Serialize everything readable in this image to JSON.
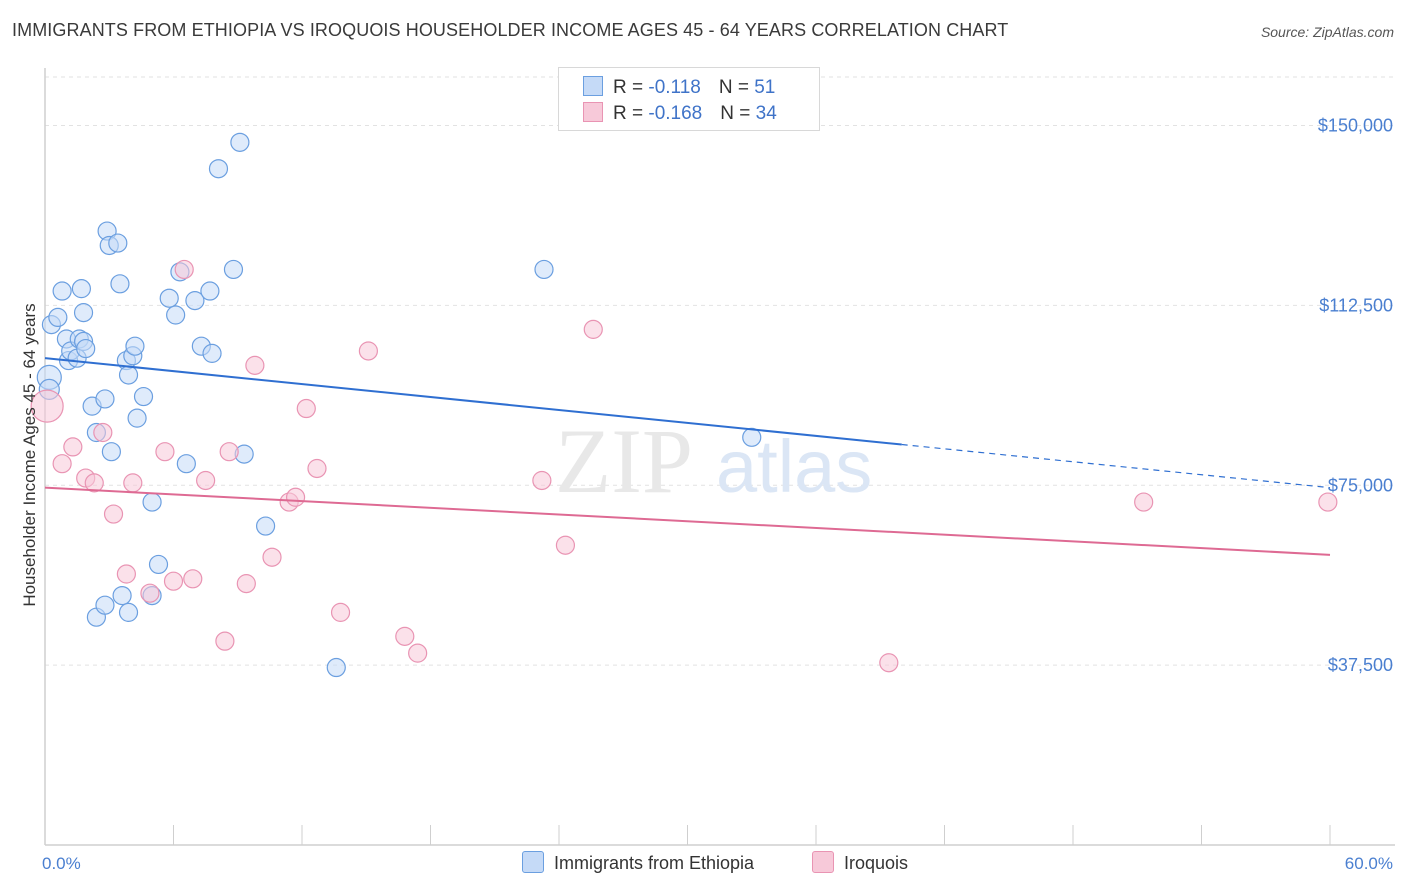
{
  "title": "IMMIGRANTS FROM ETHIOPIA VS IROQUOIS HOUSEHOLDER INCOME AGES 45 - 64 YEARS CORRELATION CHART",
  "source": "Source: ZipAtlas.com",
  "watermark": {
    "zip": "ZIP",
    "atlas": "atlas"
  },
  "legend": {
    "rows": [
      {
        "r_label": "R = ",
        "r_value": "-0.118",
        "n_label": "N = ",
        "n_value": "51"
      },
      {
        "r_label": "R = ",
        "r_value": "-0.168",
        "n_label": "N = ",
        "n_value": "34"
      }
    ]
  },
  "chart_data": {
    "type": "scatter",
    "xlabel": "",
    "ylabel": "Householder Income Ages 45 - 64 years",
    "xlim": [
      0,
      60
    ],
    "ylim": [
      0,
      162000
    ],
    "x_tick_labels": [
      "0.0%",
      "60.0%"
    ],
    "y_ticks": [
      37500,
      75000,
      112500,
      150000
    ],
    "y_tick_labels": [
      "$37,500",
      "$75,000",
      "$112,500",
      "$150,000"
    ],
    "grid": true,
    "legend_position": "top-center",
    "series": [
      {
        "name": "Immigrants from Ethiopia",
        "color": "#6b9fe0",
        "fill": "#c5daf7",
        "line_color": "#2f6fd1",
        "trend": {
          "x0": 0,
          "y0": 101500,
          "x1": 40,
          "y1": 83500,
          "dash_to_x": 60,
          "dash_to_y": 74500
        },
        "points": [
          [
            0.2,
            97500,
            12
          ],
          [
            0.2,
            95000,
            10
          ],
          [
            0.3,
            108500,
            9
          ],
          [
            0.6,
            110000,
            9
          ],
          [
            0.8,
            115500,
            9
          ],
          [
            1.0,
            105500,
            9
          ],
          [
            1.1,
            101000,
            9
          ],
          [
            1.2,
            103000,
            9
          ],
          [
            1.5,
            101500,
            9
          ],
          [
            1.6,
            105500,
            9
          ],
          [
            1.7,
            116000,
            9
          ],
          [
            1.8,
            111000,
            9
          ],
          [
            1.8,
            105000,
            9
          ],
          [
            1.9,
            103500,
            9
          ],
          [
            2.2,
            91500,
            9
          ],
          [
            2.4,
            86000,
            9
          ],
          [
            2.8,
            93000,
            9
          ],
          [
            2.9,
            128000,
            9
          ],
          [
            3.0,
            125000,
            9
          ],
          [
            3.1,
            82000,
            9
          ],
          [
            3.4,
            125500,
            9
          ],
          [
            3.5,
            117000,
            9
          ],
          [
            3.8,
            101000,
            9
          ],
          [
            3.9,
            98000,
            9
          ],
          [
            4.1,
            102000,
            9
          ],
          [
            4.2,
            104000,
            9
          ],
          [
            4.3,
            89000,
            9
          ],
          [
            4.6,
            93500,
            9
          ],
          [
            5.0,
            71500,
            9
          ],
          [
            5.3,
            58500,
            9
          ],
          [
            5.8,
            114000,
            9
          ],
          [
            6.1,
            110500,
            9
          ],
          [
            6.3,
            119500,
            9
          ],
          [
            6.6,
            79500,
            9
          ],
          [
            7.0,
            113500,
            9
          ],
          [
            7.3,
            104000,
            9
          ],
          [
            7.7,
            115500,
            9
          ],
          [
            7.8,
            102500,
            9
          ],
          [
            8.1,
            141000,
            9
          ],
          [
            8.8,
            120000,
            9
          ],
          [
            9.1,
            146500,
            9
          ],
          [
            9.3,
            81500,
            9
          ],
          [
            10.3,
            66500,
            9
          ],
          [
            13.6,
            37000,
            9
          ],
          [
            23.3,
            120000,
            9
          ],
          [
            2.4,
            47500,
            9
          ],
          [
            2.8,
            50000,
            9
          ],
          [
            3.6,
            52000,
            9
          ],
          [
            3.9,
            48500,
            9
          ],
          [
            5.0,
            52000,
            9
          ],
          [
            33.0,
            85000,
            9
          ]
        ]
      },
      {
        "name": "Iroquois",
        "color": "#e994b3",
        "fill": "#f7c9d9",
        "line_color": "#de6a93",
        "trend": {
          "x0": 0,
          "y0": 74500,
          "x1": 60,
          "y1": 60500
        },
        "points": [
          [
            0.1,
            91500,
            16
          ],
          [
            0.8,
            79500,
            9
          ],
          [
            1.3,
            83000,
            9
          ],
          [
            1.9,
            76500,
            9
          ],
          [
            2.3,
            75500,
            9
          ],
          [
            2.7,
            86000,
            9
          ],
          [
            3.2,
            69000,
            9
          ],
          [
            3.8,
            56500,
            9
          ],
          [
            4.1,
            75500,
            9
          ],
          [
            4.9,
            52500,
            9
          ],
          [
            5.6,
            82000,
            9
          ],
          [
            6.0,
            55000,
            9
          ],
          [
            6.5,
            120000,
            9
          ],
          [
            6.9,
            55500,
            9
          ],
          [
            7.5,
            76000,
            9
          ],
          [
            8.4,
            42500,
            9
          ],
          [
            8.6,
            82000,
            9
          ],
          [
            9.4,
            54500,
            9
          ],
          [
            9.8,
            100000,
            9
          ],
          [
            10.6,
            60000,
            9
          ],
          [
            11.4,
            71500,
            9
          ],
          [
            11.7,
            72500,
            9
          ],
          [
            12.2,
            91000,
            9
          ],
          [
            12.7,
            78500,
            9
          ],
          [
            13.8,
            48500,
            9
          ],
          [
            15.1,
            103000,
            9
          ],
          [
            16.8,
            43500,
            9
          ],
          [
            17.4,
            40000,
            9
          ],
          [
            23.2,
            76000,
            9
          ],
          [
            24.3,
            62500,
            9
          ],
          [
            25.6,
            107500,
            9
          ],
          [
            39.4,
            38000,
            9
          ],
          [
            51.3,
            71500,
            9
          ],
          [
            59.9,
            71500,
            9
          ]
        ]
      }
    ]
  }
}
